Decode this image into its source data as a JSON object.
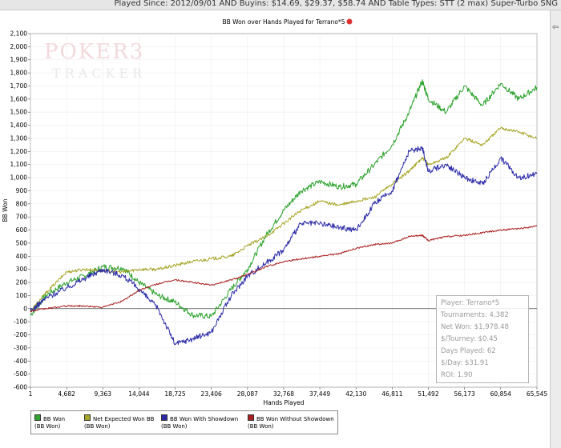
{
  "header": {
    "filter_text": "Played Since: 2012/09/01 AND Buyins: $14.69, $29.37, $58.74 AND Table Types: STT (2 max) Super-Turbo SNG"
  },
  "sidebar": {
    "back_icon": "left-arrow-icon",
    "back_glyph": "⇦"
  },
  "logo": {
    "top": "POKER3",
    "bottom": "TRACKER"
  },
  "stats": {
    "player": "Player: Terrano*5",
    "tournaments": "Tournaments: 4,382",
    "net_won": "Net Won: $1,978.48",
    "per_tourney": "$/Tourney: $0.45",
    "days_played": "Days Played: 62",
    "per_day": "$/Day: $31.91",
    "roi": "ROI: 1.90"
  },
  "legend": [
    {
      "label": "BB Won",
      "unit": "(BB Won)",
      "color": "#2ea32e"
    },
    {
      "label": "Net Expected Won BB",
      "unit": "(BB Won)",
      "color": "#a7a528"
    },
    {
      "label": "BB Won With Showdown",
      "unit": "(BB Won)",
      "color": "#2b2ba8"
    },
    {
      "label": "BB Won Without Showdown",
      "unit": "(BB Won)",
      "color": "#aa1f1f"
    }
  ],
  "chart_data": {
    "type": "line",
    "title": "BB Won over Hands Played for Terrano*5",
    "xlabel": "Hands Played",
    "ylabel": "BB Won",
    "xlim": [
      1,
      65545
    ],
    "ylim": [
      -600,
      2100
    ],
    "x_ticks": [
      "1",
      "4,682",
      "9,363",
      "14,044",
      "18,725",
      "23,406",
      "28,087",
      "32,768",
      "37,449",
      "42,130",
      "46,811",
      "51,492",
      "56,173",
      "60,854",
      "65,545"
    ],
    "y_ticks": [
      "2,100",
      "2,000",
      "1,900",
      "1,800",
      "1,700",
      "1,600",
      "1,500",
      "1,400",
      "1,300",
      "1,200",
      "1,100",
      "1,000",
      "900",
      "800",
      "700",
      "600",
      "500",
      "400",
      "300",
      "200",
      "100",
      "0",
      "-100",
      "-200",
      "-300",
      "-400",
      "-500",
      "-600"
    ],
    "x": [
      1,
      2000,
      4682,
      7000,
      9363,
      12000,
      14044,
      16500,
      18725,
      21000,
      23406,
      26000,
      28087,
      30500,
      32768,
      35000,
      37449,
      40000,
      42130,
      44500,
      46811,
      49000,
      50700,
      51492,
      53800,
      56173,
      58500,
      60854,
      63200,
      65545
    ],
    "series": [
      {
        "name": "BB Won",
        "values": [
          -50,
          100,
          200,
          250,
          320,
          310,
          200,
          100,
          50,
          -50,
          -60,
          150,
          300,
          560,
          750,
          900,
          970,
          930,
          950,
          1100,
          1250,
          1500,
          1740,
          1600,
          1500,
          1700,
          1550,
          1720,
          1600,
          1690
        ]
      },
      {
        "name": "Net Expected Won BB",
        "values": [
          -20,
          120,
          280,
          300,
          290,
          280,
          300,
          300,
          330,
          360,
          380,
          400,
          480,
          550,
          650,
          750,
          820,
          790,
          820,
          850,
          950,
          1050,
          1150,
          1100,
          1150,
          1300,
          1250,
          1380,
          1350,
          1300
        ]
      },
      {
        "name": "BB Won With Showdown",
        "values": [
          -20,
          80,
          160,
          230,
          300,
          250,
          150,
          0,
          -270,
          -230,
          -180,
          100,
          250,
          350,
          450,
          650,
          650,
          620,
          600,
          800,
          900,
          1200,
          1230,
          1050,
          1100,
          1000,
          950,
          1150,
          1000,
          1030
        ]
      },
      {
        "name": "BB Won Without Showdown",
        "values": [
          -20,
          0,
          20,
          20,
          10,
          60,
          140,
          190,
          220,
          200,
          180,
          220,
          260,
          320,
          360,
          380,
          400,
          420,
          460,
          490,
          500,
          550,
          560,
          520,
          550,
          560,
          580,
          600,
          610,
          630
        ]
      }
    ]
  }
}
